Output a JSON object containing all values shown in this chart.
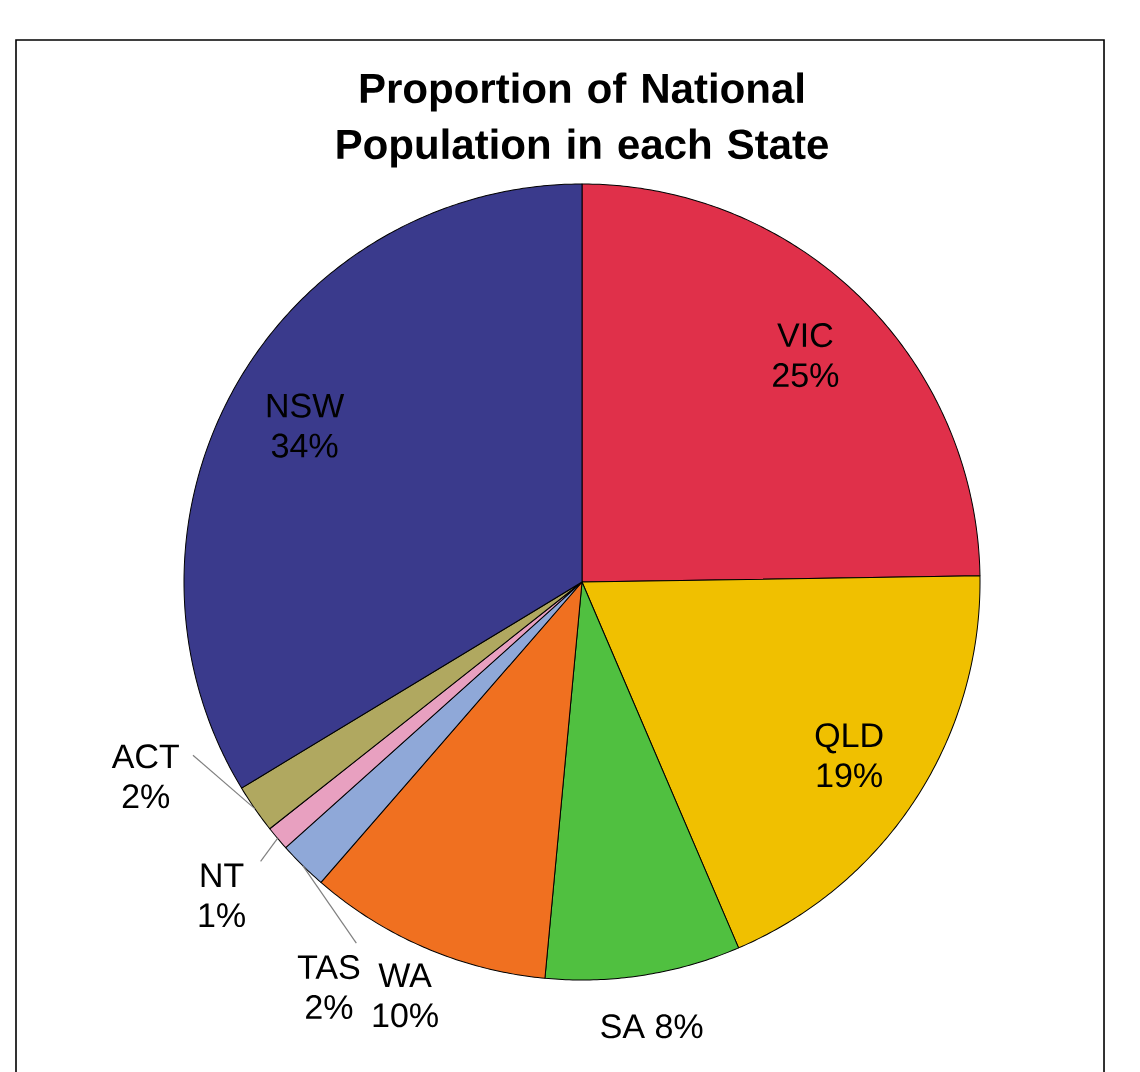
{
  "chart_data": {
    "type": "pie",
    "title": "Proportion of National Population in each State",
    "categories": [
      "VIC",
      "QLD",
      "SA",
      "WA",
      "TAS",
      "NT",
      "ACT",
      "NSW"
    ],
    "values": [
      25,
      19,
      8,
      10,
      2,
      1,
      2,
      34
    ],
    "value_labels": [
      "25%",
      "19%",
      "8%",
      "10%",
      "2%",
      "1%",
      "2%",
      "34%"
    ],
    "colors": [
      "#e0304a",
      "#f0c000",
      "#50c040",
      "#f07020",
      "#8fa8d8",
      "#e8a0c0",
      "#b0a860",
      "#3a3a8c"
    ]
  }
}
